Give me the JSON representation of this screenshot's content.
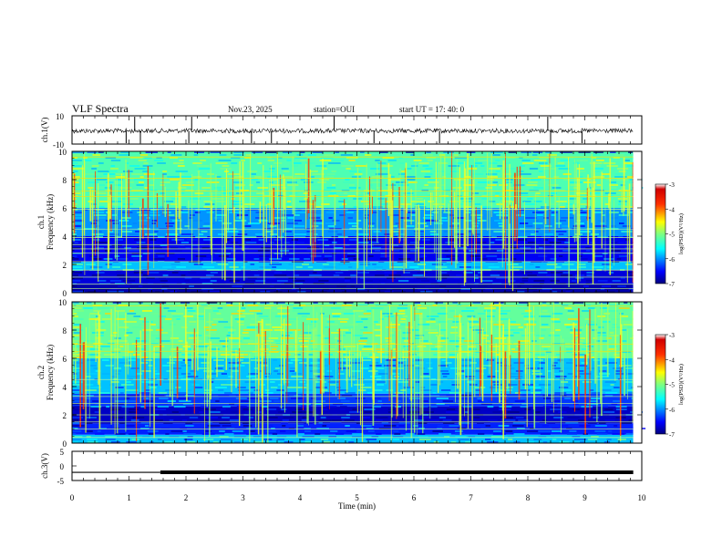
{
  "header": {
    "title": "VLF Spectra",
    "date": "Nov.23, 2025",
    "station": "station=OUI",
    "start": "start  UT =   17: 40: 0"
  },
  "chart_data": [
    {
      "type": "line",
      "panel": "ch1-waveform",
      "ylabel": "ch.1(V)",
      "yticks": [
        "10",
        "-10"
      ],
      "ylim": [
        -10,
        10
      ],
      "trace_level": 0,
      "spike_times_min": [
        0.95,
        1.1,
        1.2,
        2.05,
        2.1,
        3.15,
        3.5,
        4.6,
        5.3,
        6.45,
        8.35,
        8.4,
        8.95
      ]
    },
    {
      "type": "heatmap",
      "panel": "ch1-spectrogram",
      "ylabel": "ch.1\nFrequency (kHz)",
      "yticks": [
        "0",
        "2",
        "4",
        "6",
        "8",
        "10"
      ],
      "ylim": [
        0,
        10
      ],
      "xlim": [
        0,
        9.85
      ],
      "colorbar": {
        "label": "log(PSD)(V²/Hz)",
        "ticks": [
          "-3",
          "-4",
          "-5",
          "-6",
          "-7"
        ],
        "range": [
          -7,
          -3
        ]
      },
      "bands_khz": [
        {
          "range": [
            0,
            0.6
          ],
          "level": -6.8
        },
        {
          "range": [
            0.6,
            1.6
          ],
          "level": -6.6
        },
        {
          "range": [
            1.6,
            2.2
          ],
          "level": -5.6
        },
        {
          "range": [
            2.2,
            4.0
          ],
          "level": -6.5
        },
        {
          "range": [
            4.0,
            6.0
          ],
          "level": -5.8
        },
        {
          "range": [
            6.0,
            10.0
          ],
          "level": -5.0
        }
      ],
      "tone_lines_khz": [
        0.3,
        0.6,
        1.1,
        1.6,
        2.2,
        2.8,
        3.1,
        3.4,
        3.9,
        4.5,
        5.9,
        6.8,
        7.2,
        8.1,
        9.6
      ]
    },
    {
      "type": "heatmap",
      "panel": "ch2-spectrogram",
      "ylabel": "ch.2\nFrequency (kHz)",
      "yticks": [
        "0",
        "2",
        "4",
        "6",
        "8",
        "10"
      ],
      "ylim": [
        0,
        10
      ],
      "xlim": [
        0,
        9.85
      ],
      "colorbar": {
        "label": "log(PSD)(V²/Hz)",
        "ticks": [
          "-3",
          "-4",
          "-5",
          "-6",
          "-7"
        ],
        "range": [
          -7,
          -3
        ]
      },
      "bands_khz": [
        {
          "range": [
            0,
            0.6
          ],
          "level": -5.6
        },
        {
          "range": [
            0.6,
            1.4
          ],
          "level": -6.3
        },
        {
          "range": [
            1.4,
            2.6
          ],
          "level": -6.7
        },
        {
          "range": [
            2.6,
            3.5
          ],
          "level": -6.2
        },
        {
          "range": [
            3.5,
            6.0
          ],
          "level": -5.6
        },
        {
          "range": [
            6.0,
            10.0
          ],
          "level": -4.9
        }
      ],
      "tone_lines_khz": [
        0.4,
        1.0,
        1.5,
        2.0,
        2.8,
        3.3,
        4.5,
        6.5,
        7.0,
        9.7
      ]
    },
    {
      "type": "line",
      "panel": "ch3-signal",
      "ylabel": "ch.3(V)",
      "yticks": [
        "5",
        "0",
        "-5"
      ],
      "ylim": [
        -5,
        5
      ],
      "x": [
        0,
        1.55,
        1.55,
        9.85
      ],
      "y": [
        -2.2,
        -2.2,
        -2.2,
        -2.2
      ],
      "thick_from_min": 1.55,
      "xlabel": "Time (min)",
      "xticks": [
        "0",
        "1",
        "2",
        "3",
        "4",
        "5",
        "6",
        "7",
        "8",
        "9",
        "10"
      ],
      "xlim": [
        0,
        10
      ]
    }
  ],
  "colors": {
    "jet": [
      "#00007f",
      "#0000ff",
      "#007fff",
      "#00ffff",
      "#7fff7f",
      "#ffff00",
      "#ff7f00",
      "#ff0000",
      "#7f0000"
    ]
  }
}
